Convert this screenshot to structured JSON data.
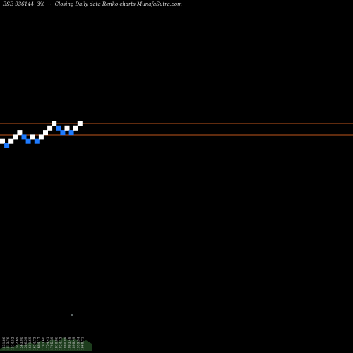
{
  "header": {
    "symbol": "BSE 936144",
    "change": "3%",
    "arrow": "~",
    "description": "Closing Daily data Renko charts MunafaSutra.com"
  },
  "colors": {
    "background": "#000000",
    "up_brick": "#ffffff",
    "down_brick": "#1e7bff",
    "level_line": "#c0561c",
    "volume": "#1d3d1d"
  },
  "chart_data": {
    "type": "renko",
    "title": "BSE 936144 3% Closing Daily data Renko charts MunafaSutra.com",
    "bricks": [
      {
        "dir": "up",
        "level": 1
      },
      {
        "dir": "down",
        "level": 0
      },
      {
        "dir": "up",
        "level": 1
      },
      {
        "dir": "up",
        "level": 2
      },
      {
        "dir": "up",
        "level": 3
      },
      {
        "dir": "down",
        "level": 2
      },
      {
        "dir": "down",
        "level": 1
      },
      {
        "dir": "up",
        "level": 2
      },
      {
        "dir": "down",
        "level": 1
      },
      {
        "dir": "up",
        "level": 2
      },
      {
        "dir": "up",
        "level": 3
      },
      {
        "dir": "up",
        "level": 4
      },
      {
        "dir": "up",
        "level": 5
      },
      {
        "dir": "down",
        "level": 4
      },
      {
        "dir": "down",
        "level": 3
      },
      {
        "dir": "up",
        "level": 4
      },
      {
        "dir": "down",
        "level": 3
      },
      {
        "dir": "up",
        "level": 4
      },
      {
        "dir": "up",
        "level": 5
      }
    ],
    "levels": [
      "upper",
      "lower"
    ],
    "volume_labels": [
      "1531.86",
      "1513.76",
      "1514.52",
      "1542.69",
      "1563.90",
      "1586.59",
      "1601.69",
      "1634.73",
      "1604.17",
      "1703.60",
      "1754.41",
      "1795.39",
      "1810.86",
      "1824.13",
      "1880.89",
      "1903.49",
      "1898.49",
      "1939.94",
      "1968.71"
    ]
  }
}
